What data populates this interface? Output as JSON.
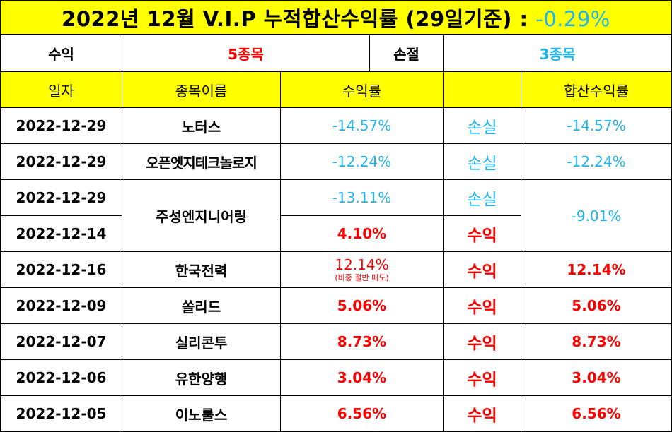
{
  "title": {
    "text": "2022년 12월 V.I.P 누적합산수익률 (29일기준) : ",
    "return": "-0.29%"
  },
  "summary": {
    "profit_label": "수익",
    "profit_count": "5종목",
    "loss_label": "손절",
    "loss_count": "3종목"
  },
  "headers": {
    "date": "일자",
    "name": "종목이름",
    "return": "수익률",
    "result": "",
    "total": "합산수익률"
  },
  "rows": [
    {
      "date": "2022-12-29",
      "name": "노터스",
      "return": "-14.57%",
      "result": "손실",
      "total": "-14.57%"
    },
    {
      "date": "2022-12-29",
      "name": "오픈엣지테크놀로지",
      "return": "-12.24%",
      "result": "손실",
      "total": "-12.24%"
    },
    {
      "date": "2022-12-29",
      "name": "주성엔지니어링",
      "return": "-13.11%",
      "result": "손실",
      "total": "-9.01%"
    },
    {
      "date": "2022-12-14",
      "name": "주성엔지니어링",
      "return": "4.10%",
      "result": "수익",
      "total": "-9.01%"
    },
    {
      "date": "2022-12-16",
      "name": "한국전력",
      "return": "12.14%",
      "note": "(비중 절반 매도)",
      "result": "수익",
      "total": "12.14%"
    },
    {
      "date": "2022-12-09",
      "name": "쏠리드",
      "return": "5.06%",
      "result": "수익",
      "total": "5.06%"
    },
    {
      "date": "2022-12-07",
      "name": "실리콘투",
      "return": "8.73%",
      "result": "수익",
      "total": "8.73%"
    },
    {
      "date": "2022-12-06",
      "name": "유한양행",
      "return": "3.04%",
      "result": "수익",
      "total": "3.04%"
    },
    {
      "date": "2022-12-05",
      "name": "이노룰스",
      "return": "6.56%",
      "result": "수익",
      "total": "6.56%"
    }
  ],
  "colors": {
    "header_bg": "#ffff00",
    "profit": "#ff0000",
    "loss": "#1fb4ee"
  }
}
